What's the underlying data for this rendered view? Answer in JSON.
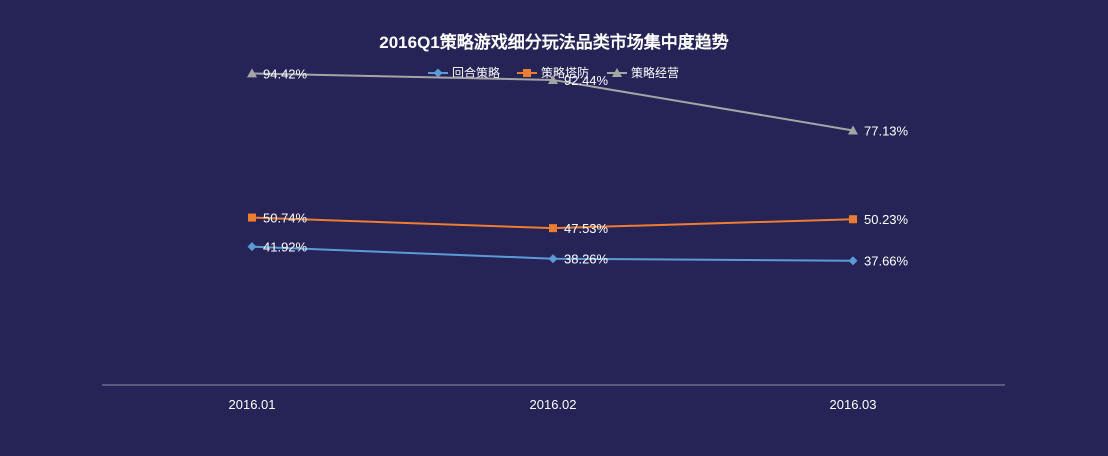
{
  "chart_data": {
    "type": "line",
    "title": "2016Q1策略游戏细分玩法品类市场集中度趋势",
    "categories": [
      "2016.01",
      "2016.02",
      "2016.03"
    ],
    "series": [
      {
        "name": "回合策略",
        "values": [
          41.92,
          38.26,
          37.66
        ],
        "labels": [
          "41.92%",
          "38.26%",
          "37.66%"
        ],
        "color": "#5b9bd5",
        "marker": "diamond"
      },
      {
        "name": "策略塔防",
        "values": [
          50.74,
          47.53,
          50.23
        ],
        "labels": [
          "50.74%",
          "47.53%",
          "50.23%"
        ],
        "color": "#ed7d31",
        "marker": "square"
      },
      {
        "name": "策略经营",
        "values": [
          94.42,
          92.44,
          77.13
        ],
        "labels": [
          "94.42%",
          "92.44%",
          "77.13%"
        ],
        "color": "#a5a5a5",
        "marker": "triangle"
      }
    ],
    "ylim": [
      0,
      100
    ],
    "grid": false,
    "legend": "top-center",
    "axis_color": "#8e8ca8"
  }
}
